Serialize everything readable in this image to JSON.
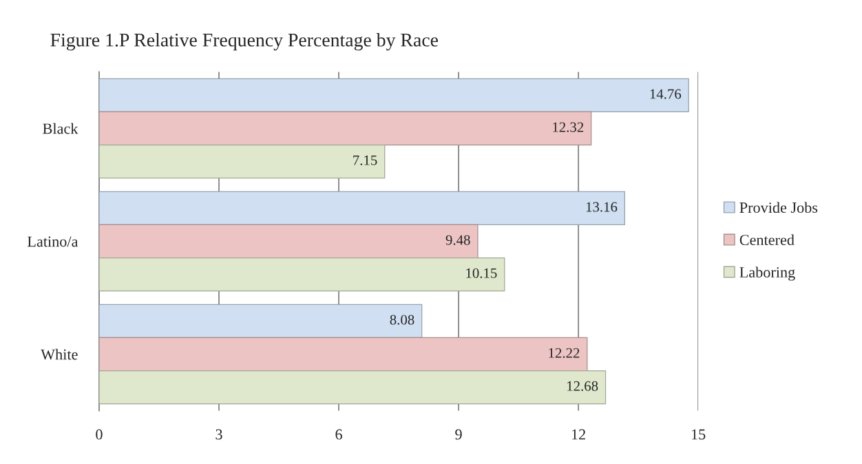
{
  "chart_data": {
    "type": "bar",
    "orientation": "horizontal",
    "title": "Figure 1.P Relative Frequency Percentage by Race",
    "categories": [
      "Black",
      "Latino/a",
      "White"
    ],
    "series": [
      {
        "name": "Provide Jobs",
        "color": "#d0e0f2",
        "values": [
          14.76,
          13.16,
          8.08
        ]
      },
      {
        "name": "Centered",
        "color": "#ecc4c4",
        "values": [
          12.32,
          9.48,
          12.22
        ]
      },
      {
        "name": "Laboring",
        "color": "#dfe8cc",
        "values": [
          7.15,
          10.15,
          12.68
        ]
      }
    ],
    "xlim": [
      0,
      15
    ],
    "xticks": [
      0,
      3,
      6,
      9,
      12,
      15
    ],
    "grid": "x",
    "legend": "right",
    "data_labels": true
  }
}
